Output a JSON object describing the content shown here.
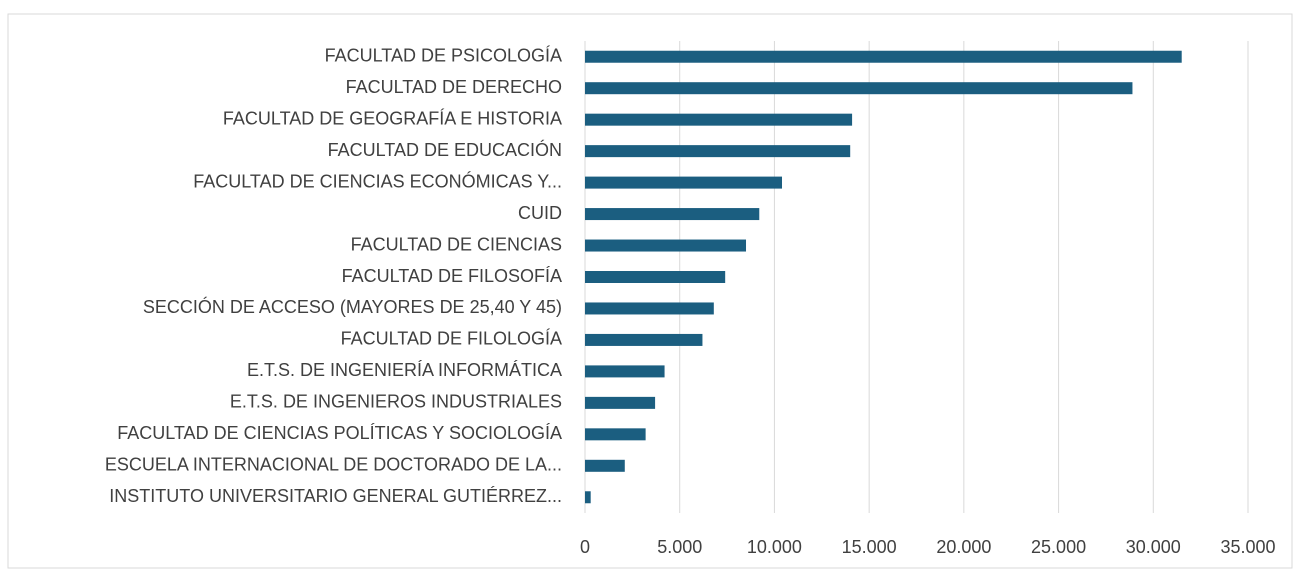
{
  "chart_data": {
    "type": "bar",
    "orientation": "horizontal",
    "categories": [
      "FACULTAD DE PSICOLOGÍA",
      "FACULTAD DE DERECHO",
      "FACULTAD DE GEOGRAFÍA E HISTORIA",
      "FACULTAD DE EDUCACIÓN",
      "FACULTAD DE CIENCIAS ECONÓMICAS Y...",
      "CUID",
      "FACULTAD DE CIENCIAS",
      "FACULTAD DE FILOSOFÍA",
      "SECCIÓN DE ACCESO (MAYORES DE 25,40 Y 45)",
      "FACULTAD DE FILOLOGÍA",
      "E.T.S. DE INGENIERÍA INFORMÁTICA",
      "E.T.S. DE INGENIEROS INDUSTRIALES",
      "FACULTAD DE CIENCIAS POLÍTICAS Y SOCIOLOGÍA",
      "ESCUELA INTERNACIONAL DE DOCTORADO DE LA...",
      "INSTITUTO UNIVERSITARIO GENERAL GUTIÉRREZ..."
    ],
    "values": [
      31500,
      28900,
      14100,
      14000,
      10400,
      9200,
      8500,
      7400,
      6800,
      6200,
      4200,
      3700,
      3200,
      2100,
      300
    ],
    "color": "#1b5e80",
    "xlim": [
      0,
      35000
    ],
    "xticks": [
      0,
      {
        "value": 5000,
        "label": "5.000"
      },
      {
        "value": 10000,
        "label": "10.000"
      },
      {
        "value": 15000,
        "label": "15.000"
      },
      {
        "value": 20000,
        "label": "20.000"
      },
      {
        "value": 25000,
        "label": "25.000"
      },
      {
        "value": 30000,
        "label": "30.000"
      },
      {
        "value": 35000,
        "label": "35.000"
      }
    ],
    "grid": true
  }
}
